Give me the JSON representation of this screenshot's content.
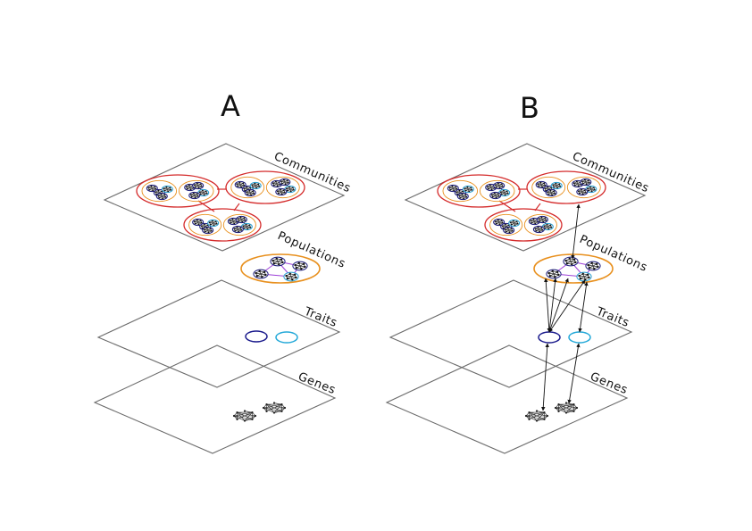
{
  "panels": [
    {
      "letter": "A",
      "labels": {
        "communities": "Communities",
        "populations": "Populations",
        "traits": "Traits",
        "genes": "Genes"
      }
    },
    {
      "letter": "B",
      "labels": {
        "communities": "Communities",
        "populations": "Populations",
        "traits": "Traits",
        "genes": "Genes"
      }
    }
  ],
  "colors": {
    "community_border": "#d42a2a",
    "population_border": "#e8901e",
    "population_edge": "#9d3fd8",
    "node_blue": "#1b1b7a",
    "node_cyan": "#2a9fd0",
    "trait_dark": "#1a1a8c",
    "trait_light": "#22a8d8",
    "gene": "#222222",
    "plane": "#6b6b6b",
    "arrow": "#111111"
  }
}
